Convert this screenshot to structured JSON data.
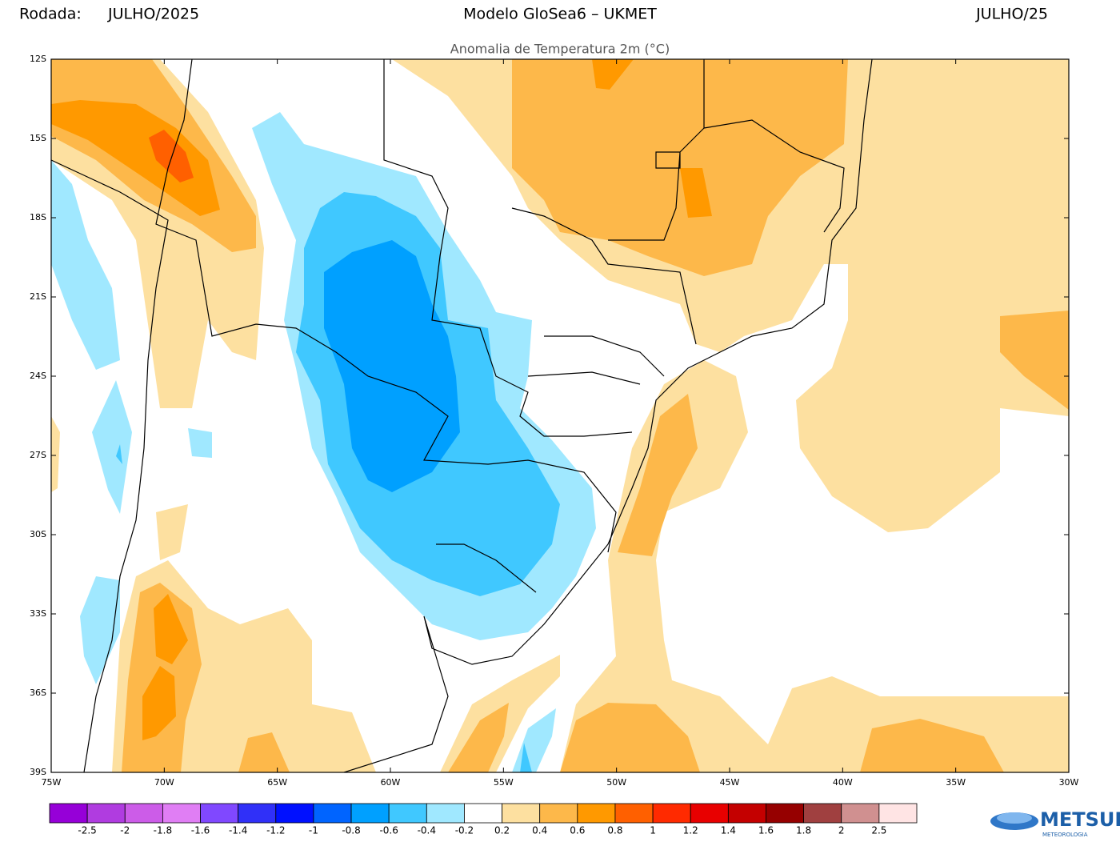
{
  "header": {
    "run_label": "Rodada:",
    "run_value": "JULHO/2025",
    "model": "Modelo GloSea6 – UKMET",
    "period": "JULHO/25",
    "subtitle": "Anomalia de Temperatura 2m (°C)"
  },
  "map": {
    "lat_labels": [
      "12S",
      "15S",
      "18S",
      "21S",
      "24S",
      "27S",
      "30S",
      "33S",
      "36S",
      "39S"
    ],
    "lon_labels": [
      "75W",
      "70W",
      "65W",
      "60W",
      "55W",
      "50W",
      "45W",
      "40W",
      "35W",
      "30W"
    ]
  },
  "colorbar": {
    "colors": [
      "#9600d8",
      "#b03ce0",
      "#cc5ce8",
      "#e07ef4",
      "#8048ff",
      "#3030f8",
      "#0010ff",
      "#0064ff",
      "#00a0ff",
      "#40c8ff",
      "#a0e8ff",
      "#ffffff",
      "#fde0a0",
      "#fdb84a",
      "#ff9900",
      "#ff6000",
      "#ff2a00",
      "#e80000",
      "#c40000",
      "#960000",
      "#a04040",
      "#d09090",
      "#ffe4e4"
    ],
    "labels": [
      "-2.5",
      "-2",
      "-1.8",
      "-1.6",
      "-1.4",
      "-1.2",
      "-1",
      "-0.8",
      "-0.6",
      "-0.4",
      "-0.2",
      "0.2",
      "0.4",
      "0.6",
      "0.8",
      "1",
      "1.2",
      "1.4",
      "1.6",
      "1.8",
      "2",
      "2.5"
    ]
  },
  "logo": {
    "name": "METSUL",
    "tagline": "METEOROLOGIA"
  }
}
